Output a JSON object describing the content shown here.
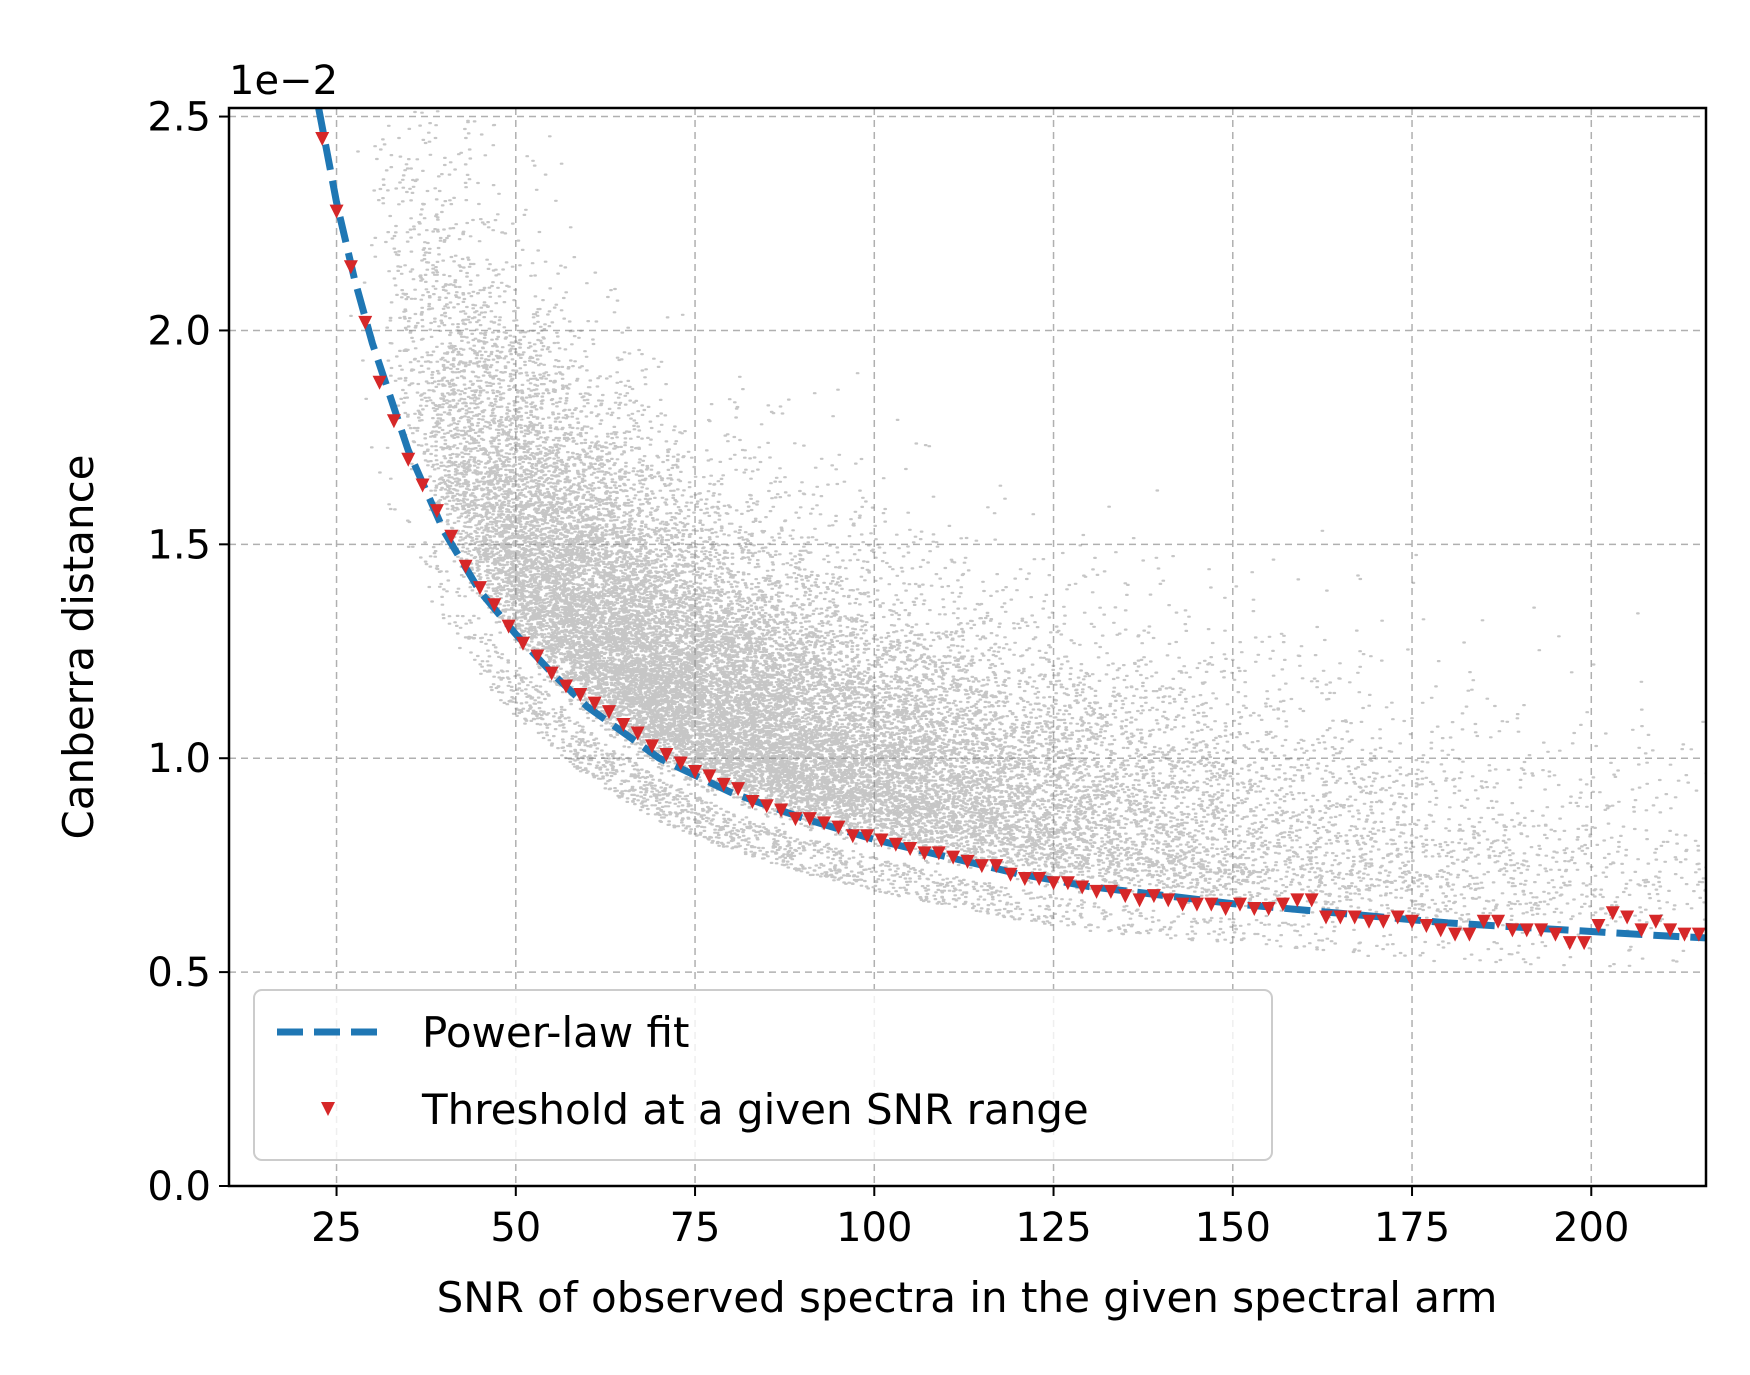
{
  "chart_data": {
    "type": "scatter",
    "xlabel": "SNR of observed spectra in the given spectral arm",
    "ylabel": "Canberra distance",
    "offset_text": "1e−2",
    "xlim": [
      10,
      216
    ],
    "ylim": [
      0.0,
      2.52
    ],
    "y_scale_factor": 0.01,
    "xticks": [
      25,
      50,
      75,
      100,
      125,
      150,
      175,
      200
    ],
    "yticks": [
      0.0,
      0.5,
      1.0,
      1.5,
      2.0,
      2.5
    ],
    "xtick_labels": [
      "25",
      "50",
      "75",
      "100",
      "125",
      "150",
      "175",
      "200"
    ],
    "ytick_labels": [
      "0.0",
      "0.5",
      "1.0",
      "1.5",
      "2.0",
      "2.5"
    ],
    "grid": true,
    "legend_position": "lower-left",
    "colors": {
      "scatter": "#808080",
      "fit": "#1f77b4",
      "threshold": "#d62728"
    },
    "series": [
      {
        "name": "Power-law fit",
        "kind": "line",
        "style": "dashed",
        "x": [
          22.5,
          25,
          27.5,
          30,
          35,
          40,
          45,
          50,
          55,
          60,
          70,
          80,
          90,
          100,
          110,
          120,
          130,
          140,
          150,
          160,
          170,
          180,
          190,
          200,
          210,
          216
        ],
        "y": [
          2.52,
          2.3,
          2.12,
          1.97,
          1.72,
          1.53,
          1.39,
          1.29,
          1.2,
          1.12,
          1.0,
          0.92,
          0.86,
          0.81,
          0.77,
          0.73,
          0.7,
          0.68,
          0.66,
          0.645,
          0.63,
          0.615,
          0.605,
          0.595,
          0.585,
          0.58
        ]
      },
      {
        "name": "Threshold at a given SNR range",
        "kind": "marker",
        "marker": "triangle-down",
        "x": [
          23,
          25,
          27,
          29,
          31,
          33,
          35,
          37,
          39,
          41,
          43,
          45,
          47,
          49,
          51,
          53,
          55,
          57,
          59,
          61,
          63,
          65,
          67,
          69,
          71,
          73,
          75,
          77,
          79,
          81,
          83,
          85,
          87,
          89,
          91,
          93,
          95,
          97,
          99,
          101,
          103,
          105,
          107,
          109,
          111,
          113,
          115,
          117,
          119,
          121,
          123,
          125,
          127,
          129,
          131,
          133,
          135,
          137,
          139,
          141,
          143,
          145,
          147,
          149,
          151,
          153,
          155,
          157,
          159,
          161,
          163,
          165,
          167,
          169,
          171,
          173,
          175,
          177,
          179,
          181,
          183,
          185,
          187,
          189,
          191,
          193,
          195,
          197,
          199,
          201,
          203,
          205,
          207,
          209,
          211,
          213,
          215
        ],
        "y": [
          2.45,
          2.28,
          2.15,
          2.02,
          1.88,
          1.79,
          1.7,
          1.64,
          1.58,
          1.52,
          1.45,
          1.4,
          1.36,
          1.31,
          1.27,
          1.24,
          1.2,
          1.17,
          1.15,
          1.13,
          1.11,
          1.08,
          1.06,
          1.03,
          1.01,
          0.99,
          0.97,
          0.96,
          0.94,
          0.93,
          0.9,
          0.89,
          0.88,
          0.86,
          0.86,
          0.85,
          0.84,
          0.82,
          0.82,
          0.81,
          0.8,
          0.79,
          0.78,
          0.78,
          0.77,
          0.76,
          0.75,
          0.75,
          0.73,
          0.72,
          0.72,
          0.71,
          0.71,
          0.7,
          0.69,
          0.69,
          0.68,
          0.67,
          0.68,
          0.67,
          0.66,
          0.66,
          0.66,
          0.65,
          0.66,
          0.65,
          0.65,
          0.66,
          0.67,
          0.67,
          0.63,
          0.63,
          0.63,
          0.62,
          0.62,
          0.63,
          0.62,
          0.61,
          0.6,
          0.59,
          0.59,
          0.62,
          0.62,
          0.6,
          0.6,
          0.6,
          0.59,
          0.57,
          0.57,
          0.61,
          0.64,
          0.63,
          0.6,
          0.62,
          0.6,
          0.59,
          0.59
        ]
      }
    ]
  }
}
